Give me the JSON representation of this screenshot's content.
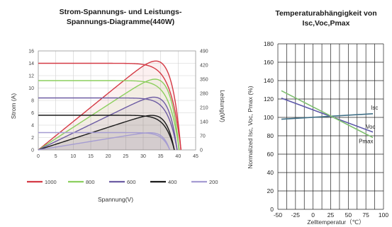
{
  "chart_data": [
    {
      "type": "line",
      "title": "Strom-Spannungs- und Leistungs-\nSpannungs-Diagramme(440W)",
      "xlabel": "Spannung(V)",
      "ylabel": "Strom (A)",
      "y2label": "Leistung(W)",
      "xlim": [
        0,
        45
      ],
      "ylim": [
        0,
        16
      ],
      "y2lim": [
        0,
        490
      ],
      "xticks": [
        "0",
        "5",
        "10",
        "15",
        "20",
        "25",
        "30",
        "35",
        "40",
        "45"
      ],
      "yticks": [
        "0",
        "2",
        "4",
        "6",
        "8",
        "10",
        "12",
        "14",
        "16"
      ],
      "y2ticks": [
        "0",
        "70",
        "140",
        "210",
        "280",
        "350",
        "420",
        "490"
      ],
      "grid": true,
      "legend_position": "bottom",
      "series": [
        {
          "name": "1000",
          "color": "#d43a45",
          "isc": 14.0,
          "voc": 40.8,
          "vmp": 33.5,
          "imp": 13.1,
          "pmax": 440
        },
        {
          "name": "800",
          "color": "#8ccf5e",
          "isc": 11.2,
          "voc": 40.3,
          "vmp": 33.3,
          "imp": 10.5,
          "pmax": 350
        },
        {
          "name": "600",
          "color": "#6d5ca3",
          "isc": 8.4,
          "voc": 39.7,
          "vmp": 33.0,
          "imp": 7.9,
          "pmax": 261
        },
        {
          "name": "400",
          "color": "#1a1a1a",
          "isc": 5.6,
          "voc": 38.9,
          "vmp": 32.6,
          "imp": 5.25,
          "pmax": 171
        },
        {
          "name": "200",
          "color": "#a59cd2",
          "isc": 2.8,
          "voc": 37.6,
          "vmp": 32.0,
          "imp": 2.65,
          "pmax": 85
        }
      ]
    },
    {
      "type": "line",
      "title": "Temperaturabhängigkeit von\nIsc,Voc,Pmax",
      "xlabel": "Zelltemperatur（℃）",
      "ylabel": "Normalized Isc, Voc, Pmax (%)",
      "xlim": [
        -50,
        100
      ],
      "ylim": [
        0,
        180
      ],
      "xticks": [
        "-50",
        "-25",
        "0",
        "25",
        "50",
        "75",
        "100"
      ],
      "yticks": [
        "0",
        "20",
        "40",
        "60",
        "80",
        "100",
        "120",
        "140",
        "160",
        "180"
      ],
      "grid": true,
      "series": [
        {
          "name": "Isc",
          "color": "#3f6f86",
          "x": [
            -45,
            85
          ],
          "y": [
            98,
            104
          ]
        },
        {
          "name": "Voc",
          "color": "#5b57a8",
          "x": [
            -45,
            85
          ],
          "y": [
            121,
            84
          ]
        },
        {
          "name": "Pmax",
          "color": "#7fbf70",
          "x": [
            -45,
            85
          ],
          "y": [
            129,
            78
          ]
        }
      ]
    }
  ]
}
